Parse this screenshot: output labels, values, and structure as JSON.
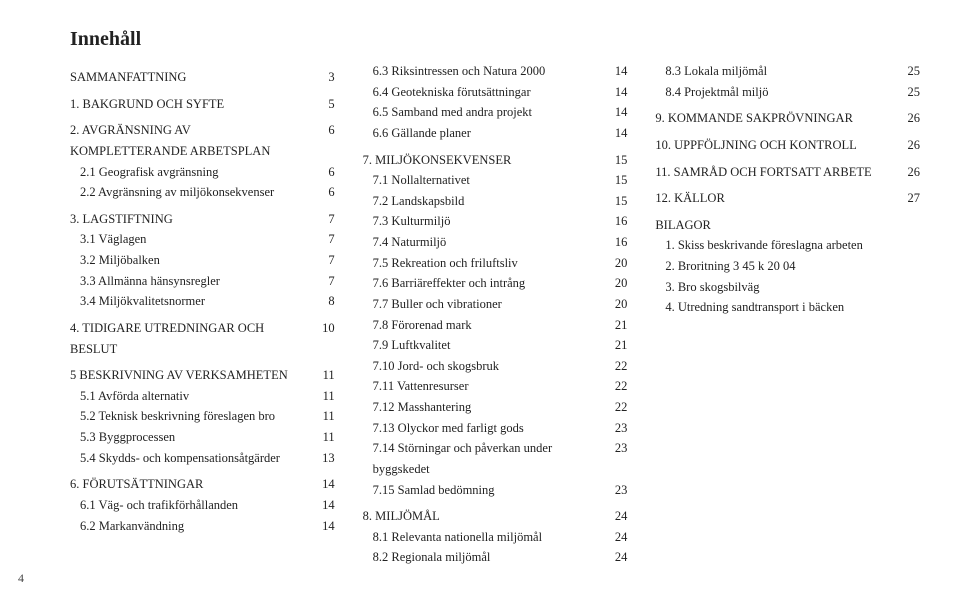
{
  "title": "Innehåll",
  "footer_page": "4",
  "col1": [
    {
      "level": "h1",
      "label": "SAMMANFATTNING",
      "page": "3"
    },
    {
      "level": "h1",
      "label": "1. BAKGRUND OCH SYFTE",
      "page": "5"
    },
    {
      "level": "h1",
      "label": "2. AVGRÄNSNING AV KOMPLETTERANDE ARBETSPLAN",
      "page": "6"
    },
    {
      "level": "h2",
      "label": "2.1 Geografisk avgränsning",
      "page": "6"
    },
    {
      "level": "h2",
      "label": "2.2 Avgränsning av miljökonsekvenser",
      "page": "6"
    },
    {
      "level": "h1",
      "label": "3. LAGSTIFTNING",
      "page": "7"
    },
    {
      "level": "h2",
      "label": "3.1 Väglagen",
      "page": "7"
    },
    {
      "level": "h2",
      "label": "3.2 Miljöbalken",
      "page": "7"
    },
    {
      "level": "h2",
      "label": "3.3 Allmänna hänsynsregler",
      "page": "7"
    },
    {
      "level": "h2",
      "label": "3.4 Miljökvalitetsnormer",
      "page": "8"
    },
    {
      "level": "h1",
      "label": "4. TIDIGARE UTREDNINGAR OCH BESLUT",
      "page": "10"
    },
    {
      "level": "h1",
      "label": "5 BESKRIVNING AV VERKSAMHETEN",
      "page": "11"
    },
    {
      "level": "h2",
      "label": "5.1 Avförda alternativ",
      "page": "11"
    },
    {
      "level": "h2",
      "label": "5.2 Teknisk beskrivning föreslagen bro",
      "page": "11"
    },
    {
      "level": "h2",
      "label": "5.3 Byggprocessen",
      "page": "11"
    },
    {
      "level": "h2",
      "label": "5.4 Skydds- och kompensationsåtgärder",
      "page": "13"
    },
    {
      "level": "h1",
      "label": "6. FÖRUTSÄTTNINGAR",
      "page": "14"
    },
    {
      "level": "h2",
      "label": "6.1 Väg- och trafikförhållanden",
      "page": "14"
    },
    {
      "level": "h2",
      "label": "6.2 Markanvändning",
      "page": "14"
    }
  ],
  "col2": [
    {
      "level": "h2",
      "label": "6.3 Riksintressen och Natura 2000",
      "page": "14"
    },
    {
      "level": "h2",
      "label": "6.4 Geotekniska förutsättningar",
      "page": "14"
    },
    {
      "level": "h2",
      "label": "6.5 Samband med andra projekt",
      "page": "14"
    },
    {
      "level": "h2",
      "label": "6.6 Gällande planer",
      "page": "14"
    },
    {
      "level": "h1",
      "label": "7. MILJÖKONSEKVENSER",
      "page": "15"
    },
    {
      "level": "h2",
      "label": "7.1 Nollalternativet",
      "page": "15"
    },
    {
      "level": "h2",
      "label": "7.2 Landskapsbild",
      "page": "15"
    },
    {
      "level": "h2",
      "label": "7.3 Kulturmiljö",
      "page": "16"
    },
    {
      "level": "h2",
      "label": "7.4 Naturmiljö",
      "page": "16"
    },
    {
      "level": "h2",
      "label": "7.5 Rekreation och friluftsliv",
      "page": "20"
    },
    {
      "level": "h2",
      "label": "7.6 Barriäreffekter och intrång",
      "page": "20"
    },
    {
      "level": "h2",
      "label": "7.7 Buller och vibrationer",
      "page": "20"
    },
    {
      "level": "h2",
      "label": "7.8 Förorenad mark",
      "page": "21"
    },
    {
      "level": "h2",
      "label": "7.9 Luftkvalitet",
      "page": "21"
    },
    {
      "level": "h2",
      "label": "7.10 Jord- och skogsbruk",
      "page": "22"
    },
    {
      "level": "h2",
      "label": "7.11 Vattenresurser",
      "page": "22"
    },
    {
      "level": "h2",
      "label": "7.12 Masshantering",
      "page": "22"
    },
    {
      "level": "h2",
      "label": "7.13 Olyckor med farligt gods",
      "page": "23"
    },
    {
      "level": "h2",
      "label": "7.14 Störningar och påverkan under byggskedet",
      "page": "23"
    },
    {
      "level": "h2",
      "label": "7.15 Samlad bedömning",
      "page": "23"
    },
    {
      "level": "h1",
      "label": "8. MILJÖMÅL",
      "page": "24"
    },
    {
      "level": "h2",
      "label": "8.1 Relevanta nationella miljömål",
      "page": "24"
    },
    {
      "level": "h2",
      "label": "8.2 Regionala miljömål",
      "page": "24"
    }
  ],
  "col3": [
    {
      "level": "h2",
      "label": "8.3 Lokala miljömål",
      "page": "25"
    },
    {
      "level": "h2",
      "label": "8.4 Projektmål miljö",
      "page": "25"
    },
    {
      "level": "h1",
      "label": "9. KOMMANDE SAKPRÖVNINGAR",
      "page": "26"
    },
    {
      "level": "h1",
      "label": "10. UPPFÖLJNING OCH KONTROLL",
      "page": "26"
    },
    {
      "level": "h1",
      "label": "11. SAMRÅD OCH FORTSATT ARBETE",
      "page": "26"
    },
    {
      "level": "h1",
      "label": "12. KÄLLOR",
      "page": "27"
    },
    {
      "level": "h1",
      "label": "BILAGOR",
      "page": ""
    },
    {
      "level": "h2",
      "label": "1. Skiss beskrivande föreslagna arbeten",
      "page": ""
    },
    {
      "level": "h2",
      "label": "2. Broritning 3 45 k 20 04",
      "page": ""
    },
    {
      "level": "h2",
      "label": "3. Bro skogsbilväg",
      "page": ""
    },
    {
      "level": "h2",
      "label": "4. Utredning sandtransport i bäcken",
      "page": ""
    }
  ]
}
